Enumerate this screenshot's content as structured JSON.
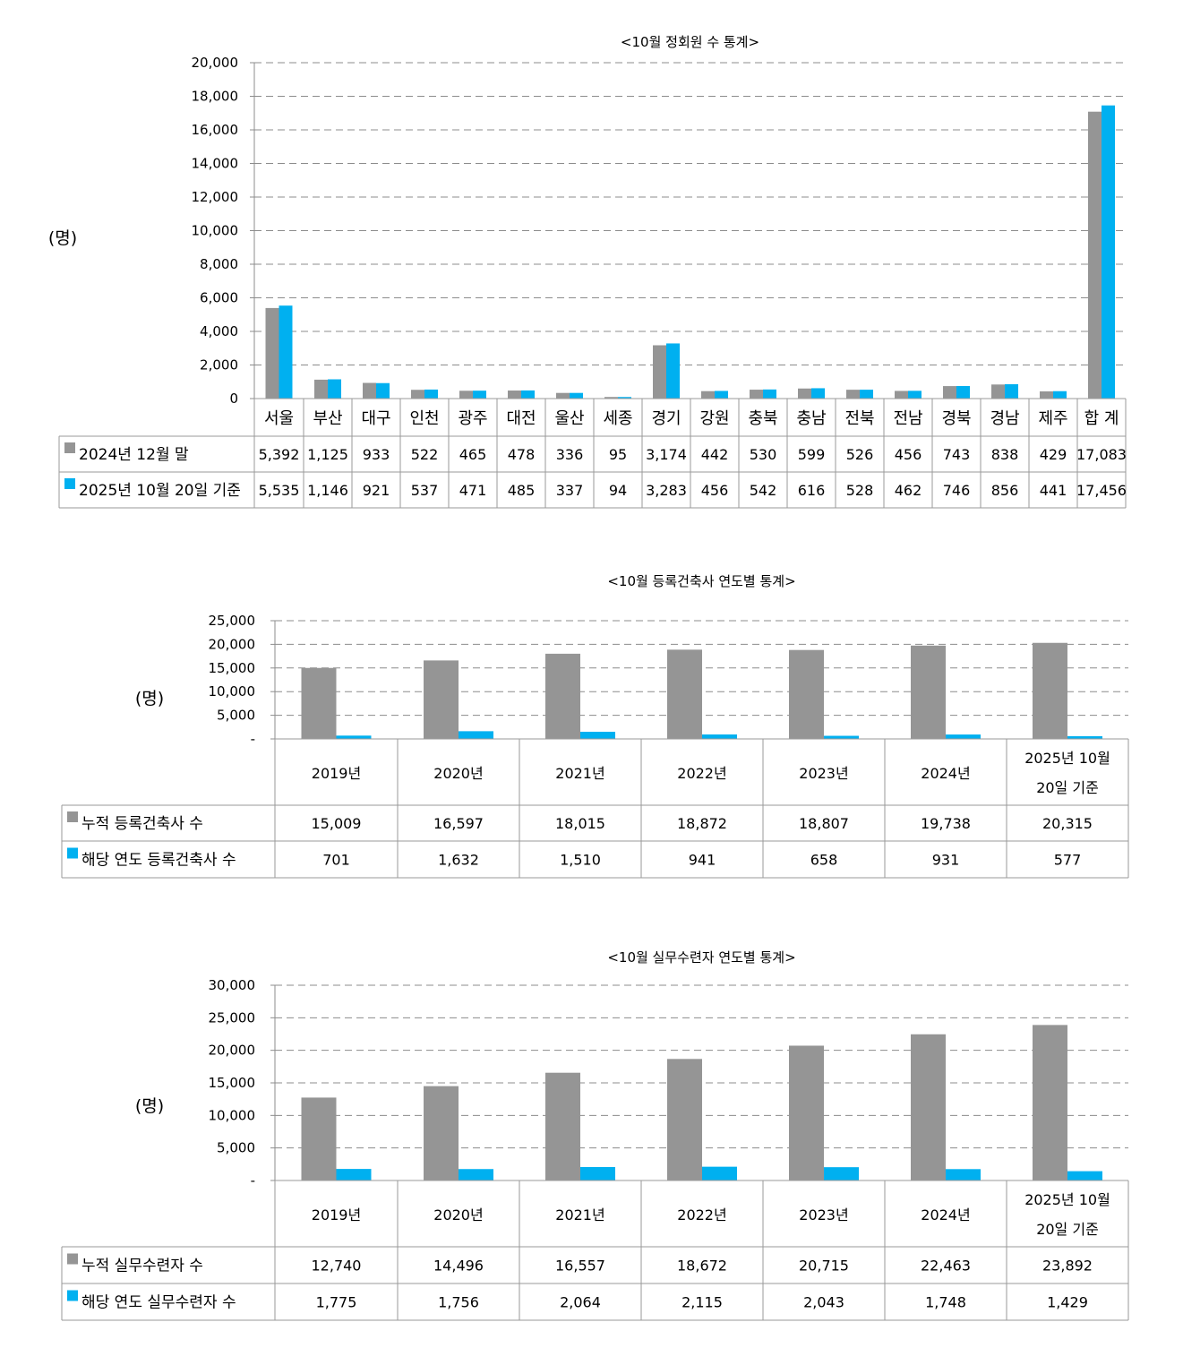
{
  "colors": {
    "series1": "#959595",
    "series2": "#00b0f0"
  },
  "chart_data": [
    {
      "type": "bar",
      "title": "<10월 정회원 수 통계>",
      "ylabel": "(명)",
      "ylim": [
        0,
        20000
      ],
      "yticks": [
        "0",
        "2,000",
        "4,000",
        "6,000",
        "8,000",
        "10,000",
        "12,000",
        "14,000",
        "16,000",
        "18,000",
        "20,000"
      ],
      "grid": true,
      "legend": "table",
      "categories": [
        "서울",
        "부산",
        "대구",
        "인천",
        "광주",
        "대전",
        "울산",
        "세종",
        "경기",
        "강원",
        "충북",
        "충남",
        "전북",
        "전남",
        "경북",
        "경남",
        "제주",
        "합 계"
      ],
      "series": [
        {
          "name": "2024년 12월 말",
          "values": [
            5392,
            1125,
            933,
            522,
            465,
            478,
            336,
            95,
            3174,
            442,
            530,
            599,
            526,
            456,
            743,
            838,
            429,
            17083
          ],
          "labels": [
            "5,392",
            "1,125",
            "933",
            "522",
            "465",
            "478",
            "336",
            "95",
            "3,174",
            "442",
            "530",
            "599",
            "526",
            "456",
            "743",
            "838",
            "429",
            "17,083"
          ]
        },
        {
          "name": "2025년 10월 20일 기준",
          "values": [
            5535,
            1146,
            921,
            537,
            471,
            485,
            337,
            94,
            3283,
            456,
            542,
            616,
            528,
            462,
            746,
            856,
            441,
            17456
          ],
          "labels": [
            "5,535",
            "1,146",
            "921",
            "537",
            "471",
            "485",
            "337",
            "94",
            "3,283",
            "456",
            "542",
            "616",
            "528",
            "462",
            "746",
            "856",
            "441",
            "17,456"
          ]
        }
      ]
    },
    {
      "type": "bar",
      "title": "<10월 등록건축사 연도별 통계>",
      "ylabel": "(명)",
      "ylim": [
        0,
        25000
      ],
      "yticks": [
        "-",
        "5,000",
        "10,000",
        "15,000",
        "20,000",
        "25,000"
      ],
      "grid": true,
      "legend": "table",
      "categories": [
        "2019년",
        "2020년",
        "2021년",
        "2022년",
        "2023년",
        "2024년",
        "2025년 10월\n20일 기준"
      ],
      "series": [
        {
          "name": "누적 등록건축사 수",
          "values": [
            15009,
            16597,
            18015,
            18872,
            18807,
            19738,
            20315
          ],
          "labels": [
            "15,009",
            "16,597",
            "18,015",
            "18,872",
            "18,807",
            "19,738",
            "20,315"
          ]
        },
        {
          "name": "해당 연도 등록건축사 수",
          "values": [
            701,
            1632,
            1510,
            941,
            658,
            931,
            577
          ],
          "labels": [
            "701",
            "1,632",
            "1,510",
            "941",
            "658",
            "931",
            "577"
          ]
        }
      ]
    },
    {
      "type": "bar",
      "title": "<10월 실무수련자 연도별 통계>",
      "ylabel": "(명)",
      "ylim": [
        0,
        30000
      ],
      "yticks": [
        "-",
        "5,000",
        "10,000",
        "15,000",
        "20,000",
        "25,000",
        "30,000"
      ],
      "grid": true,
      "legend": "table",
      "categories": [
        "2019년",
        "2020년",
        "2021년",
        "2022년",
        "2023년",
        "2024년",
        "2025년 10월\n20일 기준"
      ],
      "series": [
        {
          "name": "누적 실무수련자 수",
          "values": [
            12740,
            14496,
            16557,
            18672,
            20715,
            22463,
            23892
          ],
          "labels": [
            "12,740",
            "14,496",
            "16,557",
            "18,672",
            "20,715",
            "22,463",
            "23,892"
          ]
        },
        {
          "name": "해당 연도 실무수련자 수",
          "values": [
            1775,
            1756,
            2064,
            2115,
            2043,
            1748,
            1429
          ],
          "labels": [
            "1,775",
            "1,756",
            "2,064",
            "2,115",
            "2,043",
            "1,748",
            "1,429"
          ]
        }
      ]
    }
  ]
}
